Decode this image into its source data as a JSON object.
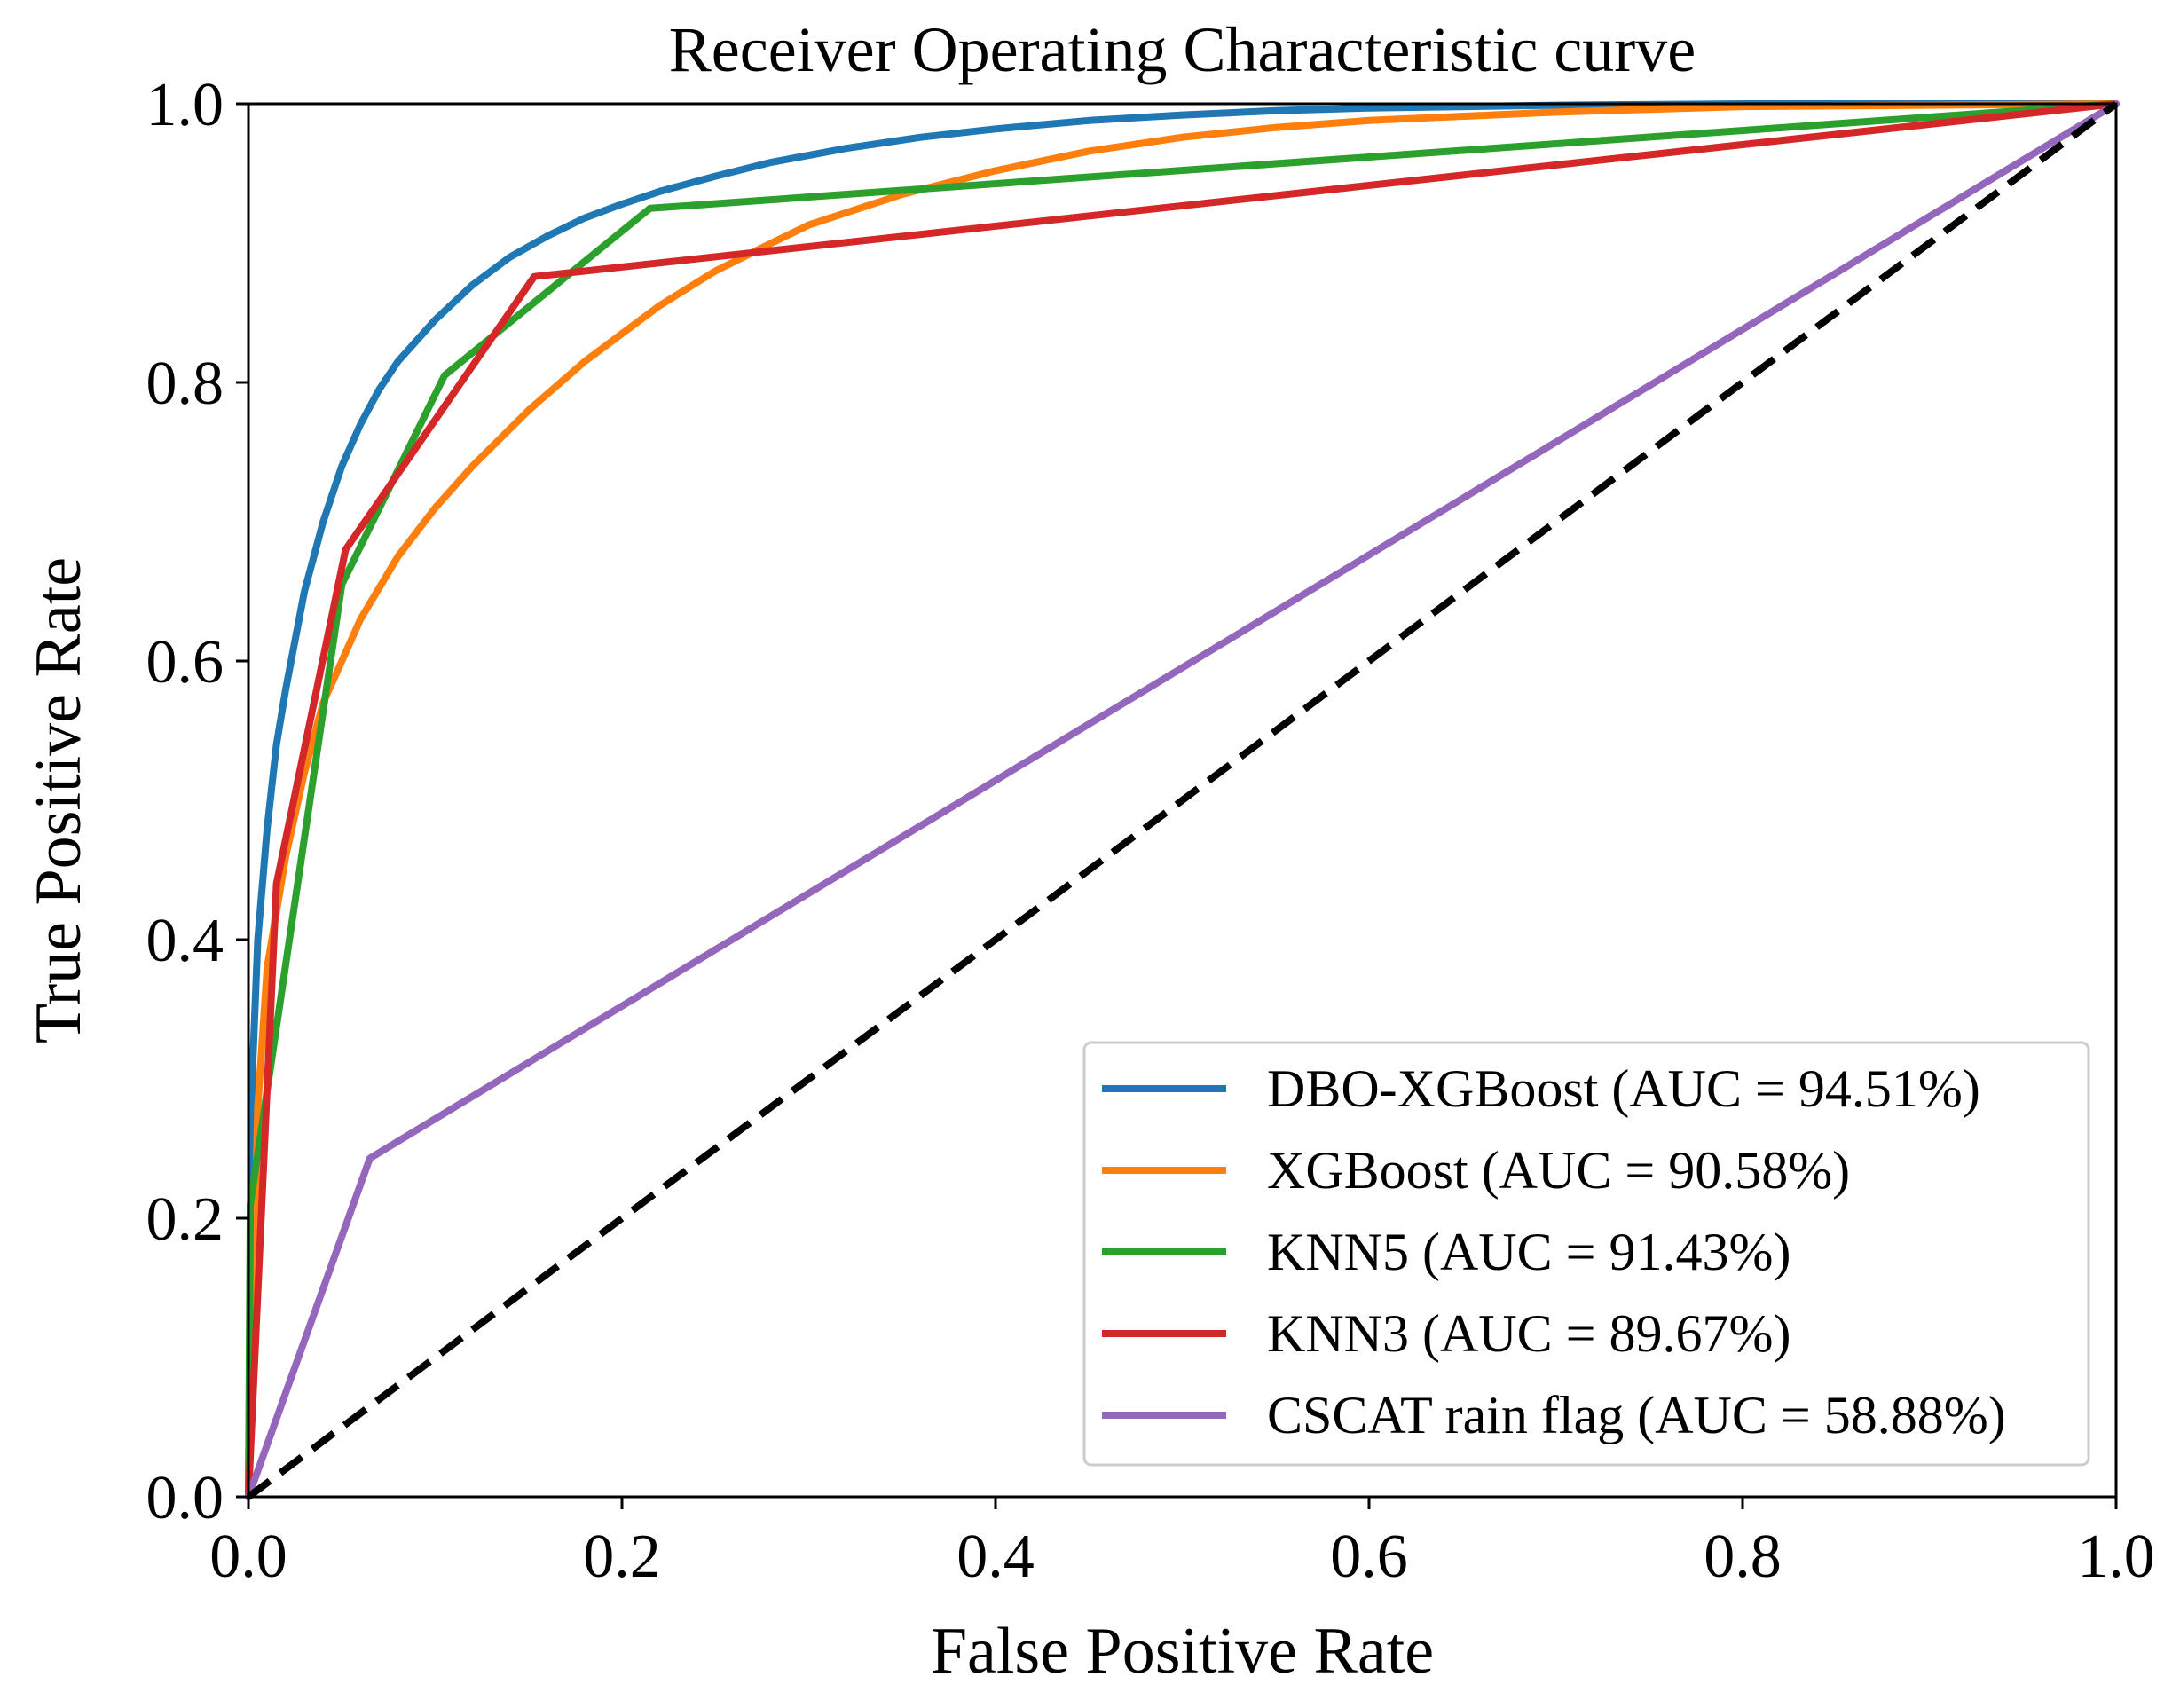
{
  "chart_data": {
    "type": "line",
    "title": "Receiver Operating Characteristic curve",
    "xlabel": "False Positive Rate",
    "ylabel": "True Positive Rate",
    "xlim": [
      0.0,
      1.0
    ],
    "ylim": [
      0.0,
      1.0
    ],
    "xticks": [
      "0.0",
      "0.2",
      "0.4",
      "0.6",
      "0.8",
      "1.0"
    ],
    "yticks": [
      "0.0",
      "0.2",
      "0.4",
      "0.6",
      "0.8",
      "1.0"
    ],
    "grid": false,
    "legend_position": "lower-right",
    "series": [
      {
        "name": "DBO-XGBoost (AUC = 94.51%)",
        "color": "#1f77b4",
        "x": [
          0,
          0.002,
          0.005,
          0.01,
          0.015,
          0.02,
          0.03,
          0.04,
          0.05,
          0.06,
          0.07,
          0.08,
          0.1,
          0.12,
          0.14,
          0.16,
          0.18,
          0.2,
          0.22,
          0.25,
          0.28,
          0.32,
          0.36,
          0.4,
          0.45,
          0.5,
          0.55,
          0.6,
          0.7,
          0.8,
          0.9,
          1.0
        ],
        "y": [
          0,
          0.3,
          0.4,
          0.48,
          0.54,
          0.58,
          0.65,
          0.7,
          0.74,
          0.77,
          0.795,
          0.815,
          0.845,
          0.87,
          0.89,
          0.905,
          0.918,
          0.928,
          0.937,
          0.948,
          0.958,
          0.968,
          0.976,
          0.982,
          0.988,
          0.992,
          0.995,
          0.997,
          0.999,
          1.0,
          1.0,
          1.0
        ]
      },
      {
        "name": "XGBoost (AUC = 90.58%)",
        "color": "#ff7f0e",
        "x": [
          0,
          0.005,
          0.01,
          0.02,
          0.03,
          0.04,
          0.05,
          0.06,
          0.08,
          0.1,
          0.12,
          0.15,
          0.18,
          0.2,
          0.22,
          0.25,
          0.28,
          0.3,
          0.35,
          0.4,
          0.45,
          0.5,
          0.55,
          0.6,
          0.7,
          0.8,
          0.9,
          1.0
        ],
        "y": [
          0,
          0.28,
          0.38,
          0.46,
          0.52,
          0.57,
          0.6,
          0.63,
          0.675,
          0.71,
          0.74,
          0.78,
          0.815,
          0.835,
          0.855,
          0.88,
          0.9,
          0.913,
          0.935,
          0.952,
          0.966,
          0.976,
          0.983,
          0.988,
          0.994,
          0.998,
          0.999,
          1.0
        ]
      },
      {
        "name": "KNN5 (AUC = 91.43%)",
        "color": "#2ca02c",
        "x": [
          0,
          0.001,
          0.05,
          0.105,
          0.215,
          1.0
        ],
        "y": [
          0,
          0.21,
          0.655,
          0.805,
          0.925,
          1.0
        ]
      },
      {
        "name": "KNN3 (AUC = 89.67%)",
        "color": "#d62728",
        "x": [
          0,
          0.015,
          0.052,
          0.153,
          1.0
        ],
        "y": [
          0,
          0.44,
          0.68,
          0.876,
          1.0
        ]
      },
      {
        "name": "CSCAT rain flag (AUC = 58.88%)",
        "color": "#9467bd",
        "x": [
          0,
          0.065,
          1.0
        ],
        "y": [
          0,
          0.243,
          1.0
        ]
      }
    ],
    "reference_line": {
      "name": "chance",
      "style": "dashed",
      "color": "#000000",
      "x": [
        0,
        1
      ],
      "y": [
        0,
        1
      ]
    }
  }
}
